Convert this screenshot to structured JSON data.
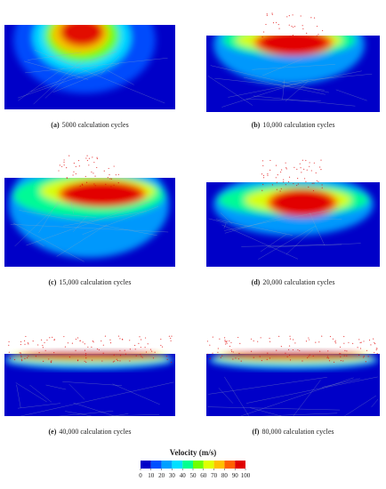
{
  "panels": [
    {
      "label": "(a)",
      "caption": "5000 calculation cycles"
    },
    {
      "label": "(b)",
      "caption": "10,000 calculation cycles"
    },
    {
      "label": "(c)",
      "caption": "15,000 calculation cycles"
    },
    {
      "label": "(d)",
      "caption": "20,000 calculation cycles"
    },
    {
      "label": "(e)",
      "caption": "40,000 calculation cycles"
    },
    {
      "label": "(f)",
      "caption": "80,000 calculation cycles"
    }
  ],
  "colorbar": {
    "title": "Velocity (m/s)",
    "ticks": [
      0,
      10,
      20,
      30,
      40,
      50,
      60,
      70,
      80,
      90,
      100
    ],
    "colors": [
      "#0000c8",
      "#0050ff",
      "#00a0ff",
      "#00e0ff",
      "#00ff90",
      "#70ff00",
      "#e0ff00",
      "#ffc000",
      "#ff6000",
      "#e00000"
    ]
  }
}
